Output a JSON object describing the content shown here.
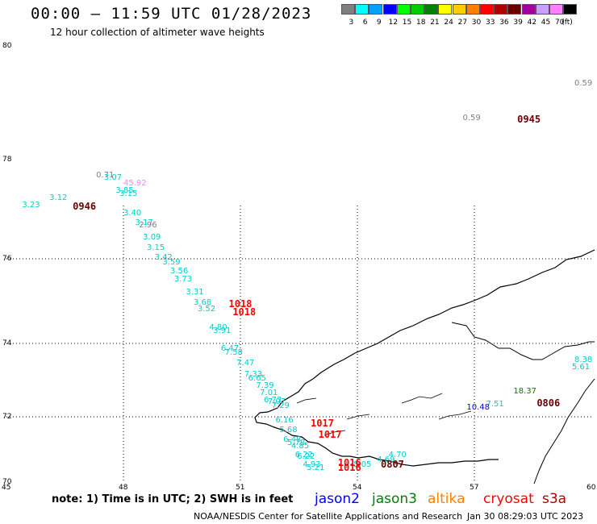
{
  "header": {
    "title": "00:00 – 11:59 UTC 01/28/2023",
    "subtitle": "12 hour collection of altimeter wave heights"
  },
  "legend": {
    "colors": [
      "#7f7f7f",
      "#00ffff",
      "#00a0ff",
      "#0000ff",
      "#00ff00",
      "#00cc00",
      "#008000",
      "#ffff00",
      "#ffcc00",
      "#ff8000",
      "#ff0000",
      "#b00000",
      "#6b0000",
      "#a000a0",
      "#c8a0ff",
      "#ff80ff",
      "#000000"
    ],
    "labels": [
      "3",
      "6",
      "9",
      "12",
      "15",
      "18",
      "21",
      "24",
      "27",
      "30",
      "33",
      "36",
      "39",
      "42",
      "45",
      "70",
      "(ft)"
    ]
  },
  "axes": {
    "lon_labels": [
      "45",
      "48",
      "51",
      "54",
      "57",
      "60"
    ],
    "lat_labels": [
      "80",
      "78",
      "76",
      "74",
      "72",
      "70"
    ]
  },
  "observations": [
    {
      "text": "0.59",
      "color": "#808080",
      "lon": 60.0,
      "lat": 79.4
    },
    {
      "text": "0.59",
      "color": "#808080",
      "lon": 56.7,
      "lat": 78.8
    },
    {
      "text": "0.71",
      "color": "#808080",
      "lon": 47.3,
      "lat": 77.75
    },
    {
      "text": "3.07",
      "color": "#00cccc",
      "lon": 47.5,
      "lat": 77.7
    },
    {
      "text": "45.92",
      "color": "#ff80ff",
      "lon": 48.0,
      "lat": 77.6
    },
    {
      "text": "3.85",
      "color": "#00cccc",
      "lon": 47.8,
      "lat": 77.45
    },
    {
      "text": "3.15",
      "color": "#00cccc",
      "lon": 47.9,
      "lat": 77.38
    },
    {
      "text": "3.12",
      "color": "#00cccc",
      "lon": 46.1,
      "lat": 77.3
    },
    {
      "text": "3.23",
      "color": "#00cccc",
      "lon": 45.4,
      "lat": 77.15
    },
    {
      "text": "3.40",
      "color": "#00cccc",
      "lon": 48.0,
      "lat": 77.0
    },
    {
      "text": "3.17",
      "color": "#00cccc",
      "lon": 48.3,
      "lat": 76.8
    },
    {
      "text": "2.96",
      "color": "#808080",
      "lon": 48.4,
      "lat": 76.75
    },
    {
      "text": "3.09",
      "color": "#00cccc",
      "lon": 48.5,
      "lat": 76.5
    },
    {
      "text": "3.15",
      "color": "#00cccc",
      "lon": 48.6,
      "lat": 76.3
    },
    {
      "text": "3.42",
      "color": "#00cccc",
      "lon": 48.8,
      "lat": 76.1
    },
    {
      "text": "3.59",
      "color": "#00cccc",
      "lon": 49.0,
      "lat": 76.0
    },
    {
      "text": "3.56",
      "color": "#00cccc",
      "lon": 49.2,
      "lat": 75.8
    },
    {
      "text": "3.73",
      "color": "#00cccc",
      "lon": 49.3,
      "lat": 75.6
    },
    {
      "text": "3.31",
      "color": "#00cccc",
      "lon": 49.6,
      "lat": 75.3
    },
    {
      "text": "3.68",
      "color": "#00cccc",
      "lon": 49.8,
      "lat": 75.05
    },
    {
      "text": "3.52",
      "color": "#00cccc",
      "lon": 49.9,
      "lat": 74.9
    },
    {
      "text": "4.80",
      "color": "#00cccc",
      "lon": 50.2,
      "lat": 74.45
    },
    {
      "text": "3.91",
      "color": "#00cccc",
      "lon": 50.3,
      "lat": 74.38
    },
    {
      "text": "6.47",
      "color": "#00cccc",
      "lon": 50.5,
      "lat": 73.95
    },
    {
      "text": "7.58",
      "color": "#00cccc",
      "lon": 50.6,
      "lat": 73.85
    },
    {
      "text": "7.47",
      "color": "#00cccc",
      "lon": 50.9,
      "lat": 73.55
    },
    {
      "text": "7.33",
      "color": "#00cccc",
      "lon": 51.1,
      "lat": 73.25
    },
    {
      "text": "6.65",
      "color": "#00cccc",
      "lon": 51.2,
      "lat": 73.15
    },
    {
      "text": "7.39",
      "color": "#00cccc",
      "lon": 51.4,
      "lat": 72.95
    },
    {
      "text": "7.01",
      "color": "#00cccc",
      "lon": 51.5,
      "lat": 72.75
    },
    {
      "text": "6.73",
      "color": "#00cccc",
      "lon": 51.6,
      "lat": 72.55
    },
    {
      "text": "7.07",
      "color": "#00cccc",
      "lon": 51.7,
      "lat": 72.5
    },
    {
      "text": "7.29",
      "color": "#00cccc",
      "lon": 51.8,
      "lat": 72.4
    },
    {
      "text": "6.16",
      "color": "#00cccc",
      "lon": 51.9,
      "lat": 72.0
    },
    {
      "text": "5.68",
      "color": "#00cccc",
      "lon": 52.0,
      "lat": 71.7
    },
    {
      "text": "6.48",
      "color": "#00cccc",
      "lon": 52.1,
      "lat": 71.4
    },
    {
      "text": "5.78",
      "color": "#00cccc",
      "lon": 52.2,
      "lat": 71.3
    },
    {
      "text": "4.85",
      "color": "#00cccc",
      "lon": 52.3,
      "lat": 71.2
    },
    {
      "text": "6.22",
      "color": "#00cccc",
      "lon": 52.4,
      "lat": 70.95
    },
    {
      "text": "6.22",
      "color": "#00cccc",
      "lon": 52.45,
      "lat": 70.9
    },
    {
      "text": "4.93",
      "color": "#00cccc",
      "lon": 52.6,
      "lat": 70.65
    },
    {
      "text": "5.21",
      "color": "#00cccc",
      "lon": 52.7,
      "lat": 70.55
    },
    {
      "text": "5.05",
      "color": "#00cccc",
      "lon": 53.9,
      "lat": 70.65
    },
    {
      "text": "4.69",
      "color": "#00cccc",
      "lon": 54.5,
      "lat": 70.8
    },
    {
      "text": "4.70",
      "color": "#00cccc",
      "lon": 54.8,
      "lat": 70.95
    },
    {
      "text": "7.51",
      "color": "#00cccc",
      "lon": 57.3,
      "lat": 72.45
    },
    {
      "text": "10.48",
      "color": "#0000ff",
      "lon": 56.8,
      "lat": 72.35
    },
    {
      "text": "18.37",
      "color": "#008000",
      "lon": 58.0,
      "lat": 72.8
    },
    {
      "text": "8.38",
      "color": "#00cccc",
      "lon": 60.0,
      "lat": 73.65
    },
    {
      "text": "5.61",
      "color": "#00cccc",
      "lon": 59.5,
      "lat": 73.45
    }
  ],
  "pass_times": [
    {
      "text": "0945",
      "color": "#6b0000",
      "lon": 58.1,
      "lat": 78.8
    },
    {
      "text": "0946",
      "color": "#6b0000",
      "lon": 46.7,
      "lat": 77.15
    },
    {
      "text": "1018",
      "color": "#ff0000",
      "lon": 50.7,
      "lat": 75.05
    },
    {
      "text": "1018",
      "color": "#ff0000",
      "lon": 50.8,
      "lat": 74.85
    },
    {
      "text": "1017",
      "color": "#ff0000",
      "lon": 52.8,
      "lat": 71.95
    },
    {
      "text": "1017",
      "color": "#ff0000",
      "lon": 53.0,
      "lat": 71.6
    },
    {
      "text": "1016",
      "color": "#ff0000",
      "lon": 53.5,
      "lat": 70.75
    },
    {
      "text": "1016",
      "color": "#ff0000",
      "lon": 53.5,
      "lat": 70.6
    },
    {
      "text": "0807",
      "color": "#6b0000",
      "lon": 54.6,
      "lat": 70.7
    },
    {
      "text": "0806",
      "color": "#6b0000",
      "lon": 58.6,
      "lat": 72.5
    }
  ],
  "note": "note: 1) Time is in UTC; 2) SWH is in feet",
  "satellites": [
    {
      "name": "jason2",
      "color": "#0000ff"
    },
    {
      "name": "jason3",
      "color": "#008000"
    },
    {
      "name": "altika",
      "color": "#ff8000"
    },
    {
      "name": "cryosat",
      "color": "#ff0000"
    },
    {
      "name": "s3a",
      "color": "#b00000"
    }
  ],
  "footer": {
    "credit": "NOAA/NESDIS Center for Satellite Applications and Research",
    "timestamp": "Jan 30 08:29:03 UTC 2023"
  }
}
